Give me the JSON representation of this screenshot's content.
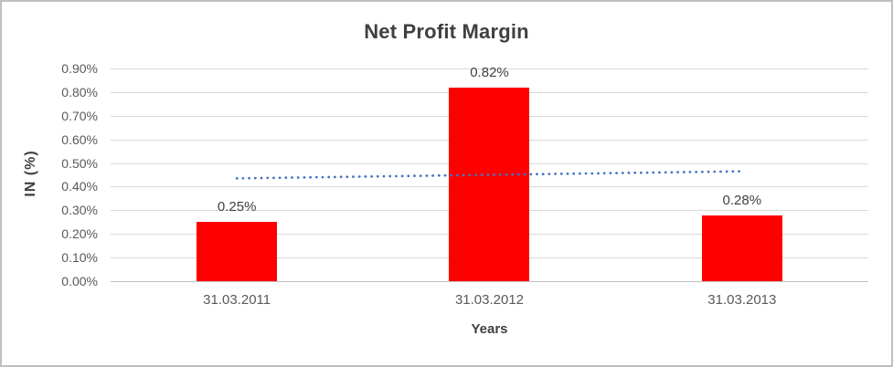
{
  "chart_data": {
    "type": "bar",
    "title": "Net Profit Margin",
    "xlabel": "Years",
    "ylabel": "IN (%)",
    "categories": [
      "31.03.2011",
      "31.03.2012",
      "31.03.2013"
    ],
    "values": [
      0.25,
      0.82,
      0.28
    ],
    "data_labels": [
      "0.25%",
      "0.82%",
      "0.28%"
    ],
    "ylim": [
      0,
      0.9
    ],
    "y_ticks": [
      {
        "label": "0.90%",
        "value": 0.9
      },
      {
        "label": "0.80%",
        "value": 0.8
      },
      {
        "label": "0.70%",
        "value": 0.7
      },
      {
        "label": "0.60%",
        "value": 0.6
      },
      {
        "label": "0.50%",
        "value": 0.5
      },
      {
        "label": "0.40%",
        "value": 0.4
      },
      {
        "label": "0.30%",
        "value": 0.3
      },
      {
        "label": "0.20%",
        "value": 0.2
      },
      {
        "label": "0.10%",
        "value": 0.1
      },
      {
        "label": "0.00%",
        "value": 0.0
      }
    ],
    "grid": true,
    "legend": false,
    "bar_color": "#FF0000",
    "trendline": {
      "type": "linear",
      "style": "dotted",
      "color": "#4472C4",
      "start_value": 0.435,
      "end_value": 0.465
    },
    "colors": {
      "gridline": "#D9D9D9",
      "axis_line": "#C0C0C0",
      "title_text": "#404040",
      "axis_text": "#595959",
      "label_text": "#404040"
    }
  }
}
